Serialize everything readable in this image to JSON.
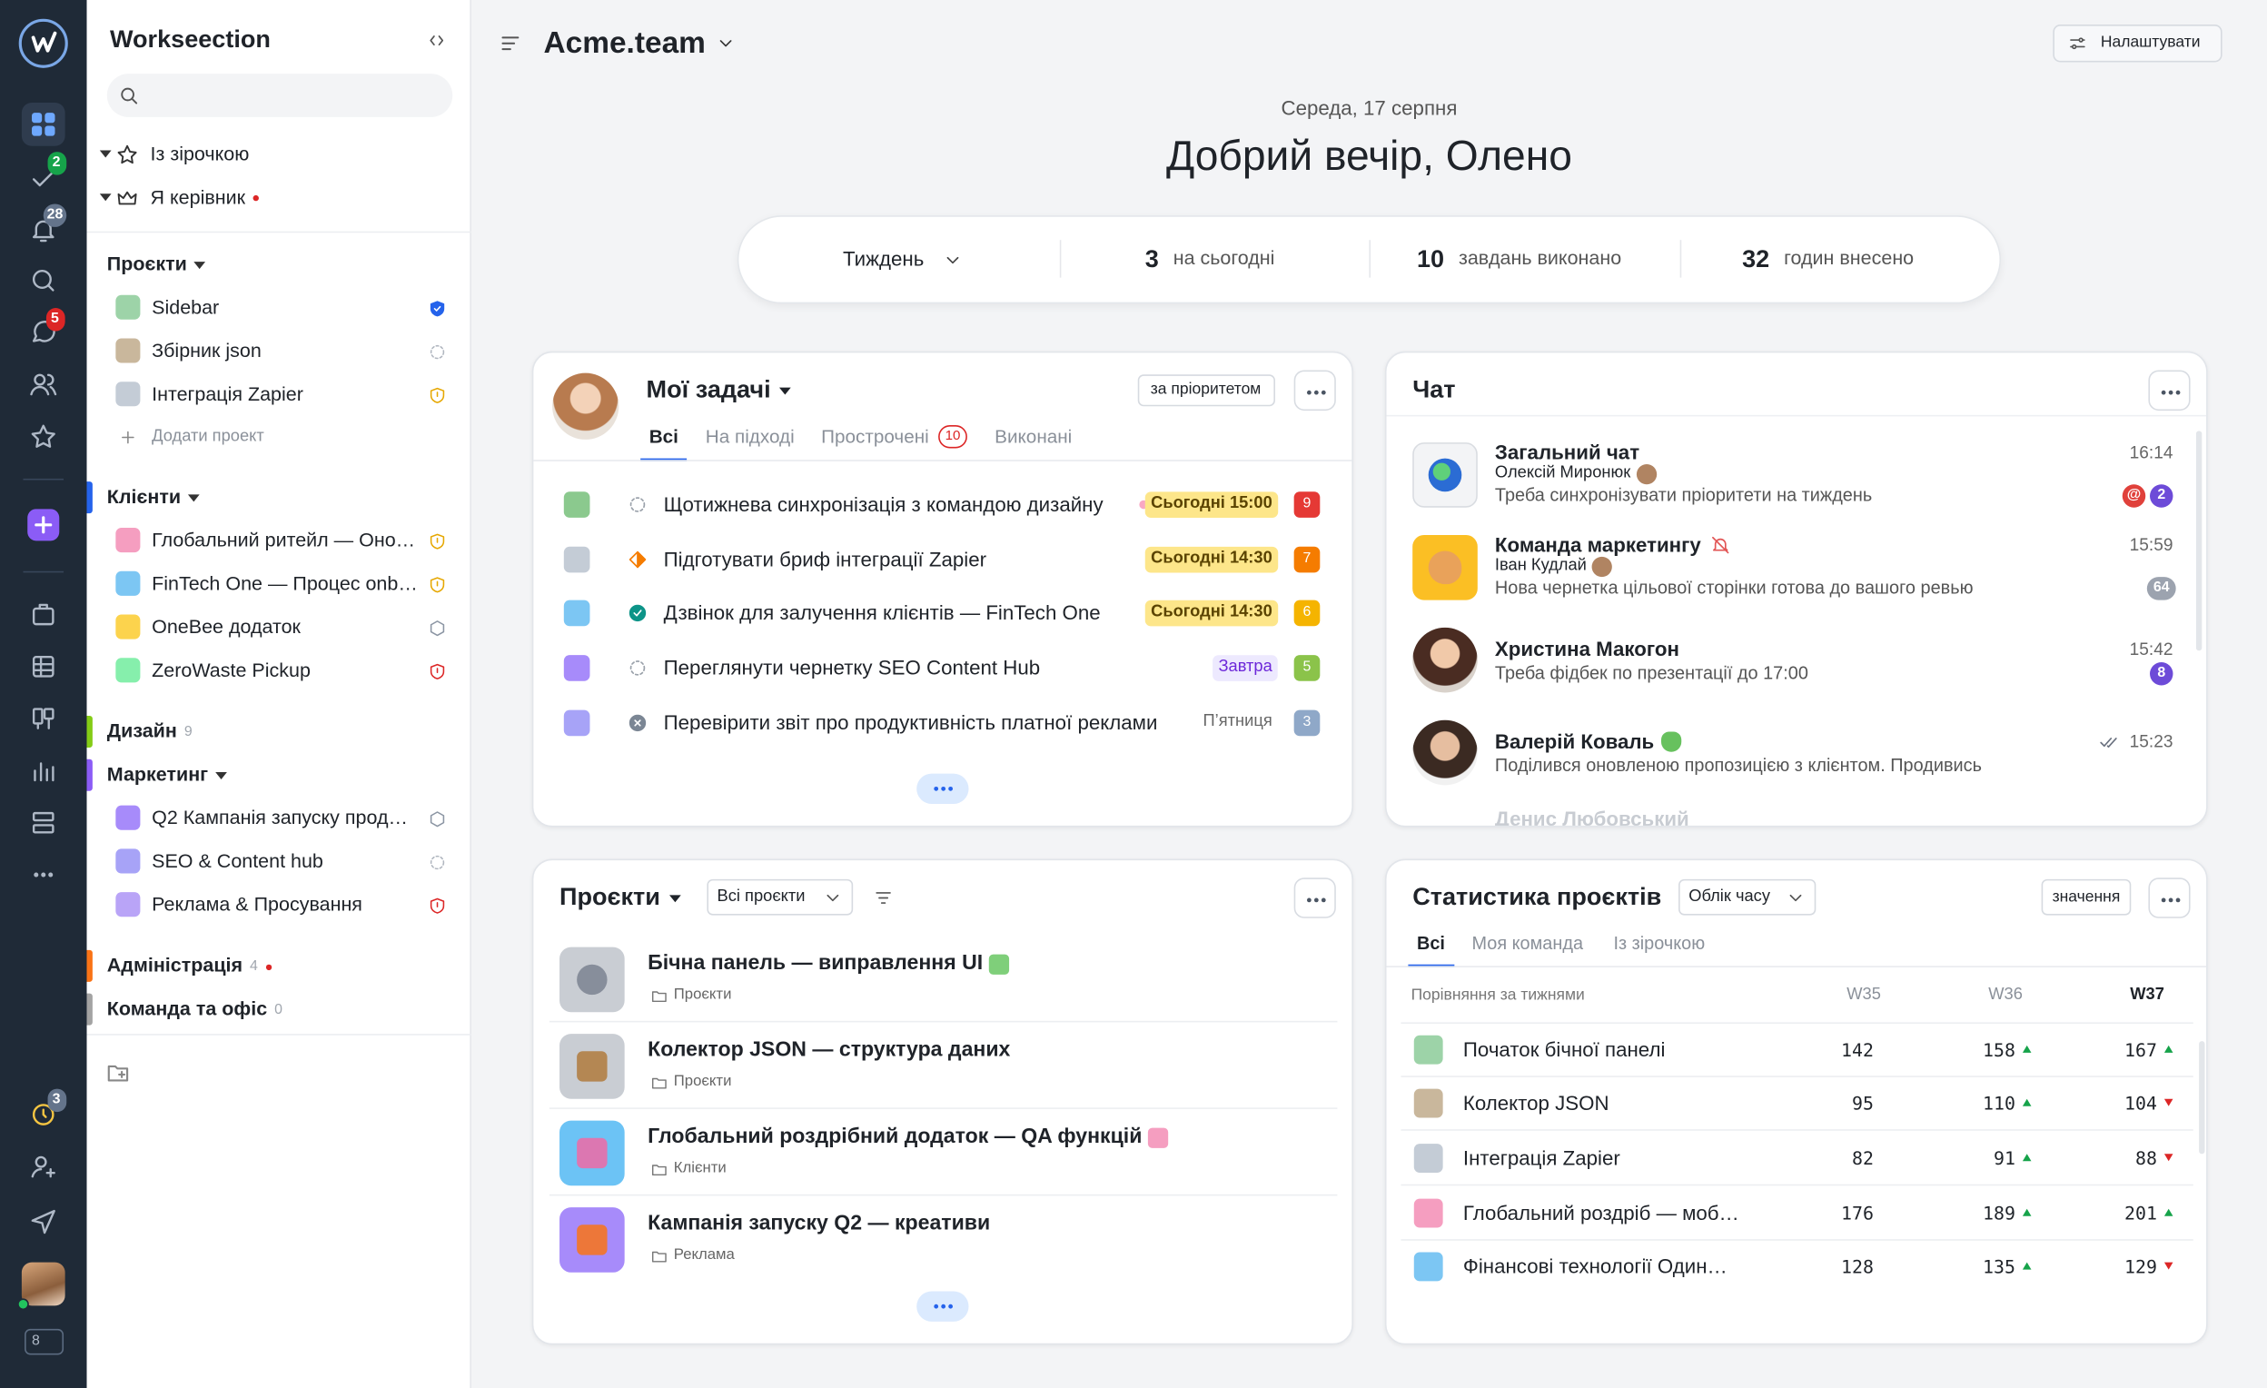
{
  "rail": {
    "badges": {
      "tasks": 2,
      "notifications": 28,
      "messages": 5,
      "timer": 3
    },
    "version": 8
  },
  "sidebar": {
    "brand": "Workseection",
    "favorites": "Із зірочкою",
    "managed": "Я керівник",
    "groups": [
      {
        "title": "Проєкти",
        "items": [
          "Sidebar",
          "Збірник json",
          "Інтеграція Zapier"
        ],
        "add": "Додати проект"
      },
      {
        "title": "Клієнти",
        "items": [
          "Глобальний ритейл — Оно…",
          "FinTech One — Процес onb…",
          "OneBee додаток",
          "ZeroWaste Pickup"
        ]
      },
      {
        "title": "Дизайн",
        "count": 9
      },
      {
        "title": "Маркетинг",
        "items": [
          "Q2 Кампанія запуску прод…",
          "SEO & Content hub",
          "Реклама & Просування"
        ]
      },
      {
        "title": "Адміністрація",
        "count": 4
      },
      {
        "title": "Команда та офіс",
        "count": 0
      }
    ]
  },
  "header": {
    "workspace": "Acme.team",
    "settings": "Налаштувати",
    "date": "Середа, 17 серпня",
    "greeting": "Добрий вечір, Олено"
  },
  "summary": {
    "period": "Тиждень",
    "items": [
      {
        "value": 3,
        "label": "на сьогодні"
      },
      {
        "value": 10,
        "label": "завдань виконано"
      },
      {
        "value": 32,
        "label": "годин внесено"
      }
    ]
  },
  "tasks": {
    "title": "Мої задачі",
    "sort": "за пріоритетом",
    "tabs": [
      "Всі",
      "На підході",
      "Прострочені",
      "Виконані"
    ],
    "overdue": 10,
    "items": [
      {
        "title": "Щотижнева синхронізація з командою дизайну",
        "due": "Сьогодні 15:00",
        "count": 9
      },
      {
        "title": "Підготувати бриф інтеграції Zapier",
        "due": "Сьогодні 14:30",
        "count": 7
      },
      {
        "title": "Дзвінок для залучення клієнтів — FinTech One",
        "due": "Сьогодні 14:30",
        "count": 6
      },
      {
        "title": "Переглянути чернетку SEO Content Hub",
        "due": "Завтра",
        "count": 5
      },
      {
        "title": "Перевірити звіт про продуктивність платної реклами",
        "due": "П’ятниця",
        "count": 3
      }
    ]
  },
  "chat": {
    "title": "Чат",
    "items": [
      {
        "name": "Загальний чат",
        "author": "Олексій Миронюк",
        "message": "Треба синхронізувати пріоритети на тиждень",
        "time": "16:14",
        "mention": "@",
        "unread": 2
      },
      {
        "name": "Команда маркетингу",
        "author": "Іван Кудлай",
        "message": "Нова чернетка цільової сторінки готова до вашого ревью",
        "time": "15:59",
        "unread": 64
      },
      {
        "name": "Христина Макогон",
        "message": "Треба фідбек по презентації до 17:00",
        "time": "15:42",
        "unread": 8
      },
      {
        "name": "Валерій Коваль",
        "message": "Поділився оновленою пропозицією з клієнтом. Продивись",
        "time": "15:23"
      }
    ],
    "next": "Денис Любовський"
  },
  "projects": {
    "title": "Проєкти",
    "filter": "Всі проєкти",
    "items": [
      {
        "title": "Бічна панель — виправлення UI",
        "folder": "Проєкти"
      },
      {
        "title": "Колектор JSON — структура даних",
        "folder": "Проєкти"
      },
      {
        "title": "Глобальний роздрібний додаток — QA функцій",
        "folder": "Клієнти"
      },
      {
        "title": "Кампанія запуску Q2 — креативи",
        "folder": "Реклама"
      }
    ]
  },
  "stats": {
    "title": "Статистика проєктів",
    "mode": "Облік часу",
    "toggle": "значення",
    "tabs": [
      "Всі",
      "Моя команда",
      "Із зірочкою"
    ],
    "caption": "Порівняння за тижнями",
    "columns": [
      "W35",
      "W36",
      "W37"
    ],
    "rows": [
      {
        "name": "Початок бічної панелі",
        "values": [
          142,
          158,
          167
        ]
      },
      {
        "name": "Колектор JSON",
        "values": [
          95,
          110,
          104
        ]
      },
      {
        "name": "Інтеграція Zapier",
        "values": [
          82,
          91,
          88
        ]
      },
      {
        "name": "Глобальний роздріб — моб…",
        "values": [
          176,
          189,
          201
        ]
      },
      {
        "name": "Фінансові технології Один…",
        "values": [
          128,
          135,
          129
        ]
      }
    ]
  }
}
